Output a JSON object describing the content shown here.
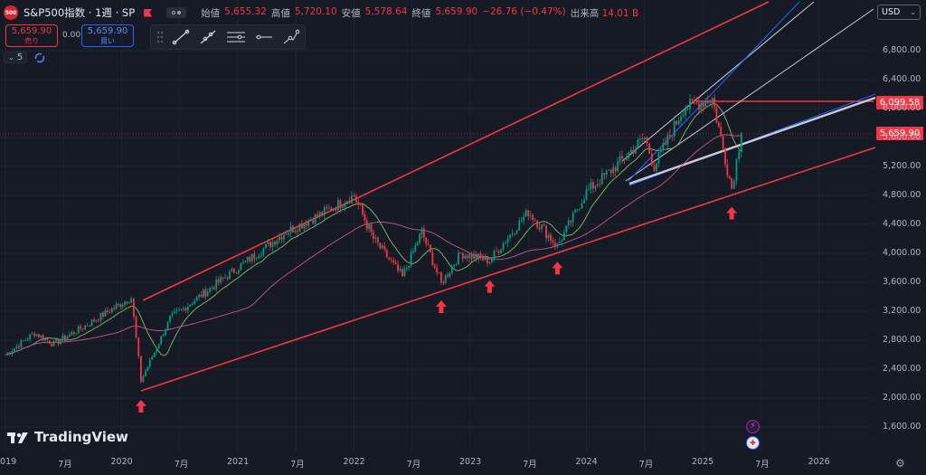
{
  "header": {
    "logo_text": "500",
    "symbol": "S&P500指数 · 1週 · SP",
    "ohlc": [
      {
        "label": "始値",
        "value": "5,655.32"
      },
      {
        "label": "高値",
        "value": "5,720.10"
      },
      {
        "label": "安値",
        "value": "5,578.64"
      },
      {
        "label": "終値",
        "value": "5,659.90"
      }
    ],
    "change": "−26.76 (−0.47%)",
    "volume_label": "出来高",
    "volume_value": "14.01 B"
  },
  "trade": {
    "sell_price": "5,659.90",
    "sell_label": "売り",
    "spread": "0.00",
    "buy_price": "5,659.90",
    "buy_label": "買い"
  },
  "indicators": {
    "count": "5"
  },
  "currency": "USD",
  "price_labels": {
    "resistance": "6,099.58",
    "last": "5,659.90"
  },
  "y_axis": [
    "6,800.00",
    "6,400.00",
    "6,000.00",
    "5,600.00",
    "5,200.00",
    "4,800.00",
    "4,400.00",
    "4,000.00",
    "3,600.00",
    "3,200.00",
    "2,800.00",
    "2,400.00",
    "2,000.00",
    "1,600.00"
  ],
  "x_axis": [
    "2019",
    "7月",
    "2020",
    "7月",
    "2021",
    "7月",
    "2022",
    "7月",
    "2023",
    "7月",
    "2024",
    "7月",
    "2025",
    "7月",
    "2026"
  ],
  "brand": "TradingView",
  "colors": {
    "up": "#089981",
    "down": "#f23645",
    "trend": "#f23645",
    "ma_short": "#7fbf6a",
    "ma_long": "#c8558f",
    "blue": "#2962ff"
  },
  "chart_data": {
    "type": "candlestick",
    "title": "S&P500指数",
    "interval": "1週",
    "ylim": [
      1500,
      7300
    ],
    "x_range": [
      "2019-01",
      "2026-07"
    ],
    "grid": true,
    "last_close": 5659.9,
    "resistance": 6099.58,
    "key_path": [
      [
        "2019-01",
        2600
      ],
      [
        "2019-04",
        2900
      ],
      [
        "2019-06",
        2750
      ],
      [
        "2019-09",
        2980
      ],
      [
        "2019-12",
        3230
      ],
      [
        "2020-02",
        3390
      ],
      [
        "2020-03",
        2240
      ],
      [
        "2020-06",
        3100
      ],
      [
        "2020-09",
        3400
      ],
      [
        "2020-11",
        3600
      ],
      [
        "2021-02",
        3900
      ],
      [
        "2021-06",
        4300
      ],
      [
        "2021-09",
        4500
      ],
      [
        "2022-01",
        4800
      ],
      [
        "2022-03",
        4200
      ],
      [
        "2022-06",
        3670
      ],
      [
        "2022-08",
        4300
      ],
      [
        "2022-10",
        3580
      ],
      [
        "2022-12",
        4000
      ],
      [
        "2023-03",
        3900
      ],
      [
        "2023-07",
        4580
      ],
      [
        "2023-10",
        4100
      ],
      [
        "2024-01",
        4850
      ],
      [
        "2024-04",
        5200
      ],
      [
        "2024-07",
        5600
      ],
      [
        "2024-08",
        5200
      ],
      [
        "2024-11",
        6000
      ],
      [
        "2025-02",
        6140
      ],
      [
        "2025-04",
        4900
      ],
      [
        "2025-05",
        5660
      ]
    ],
    "annotations": [
      "up-arrow 2020-03",
      "up-arrow 2022-10",
      "up-arrow 2023-03",
      "up-arrow 2023-10",
      "up-arrow 2025-04"
    ]
  }
}
